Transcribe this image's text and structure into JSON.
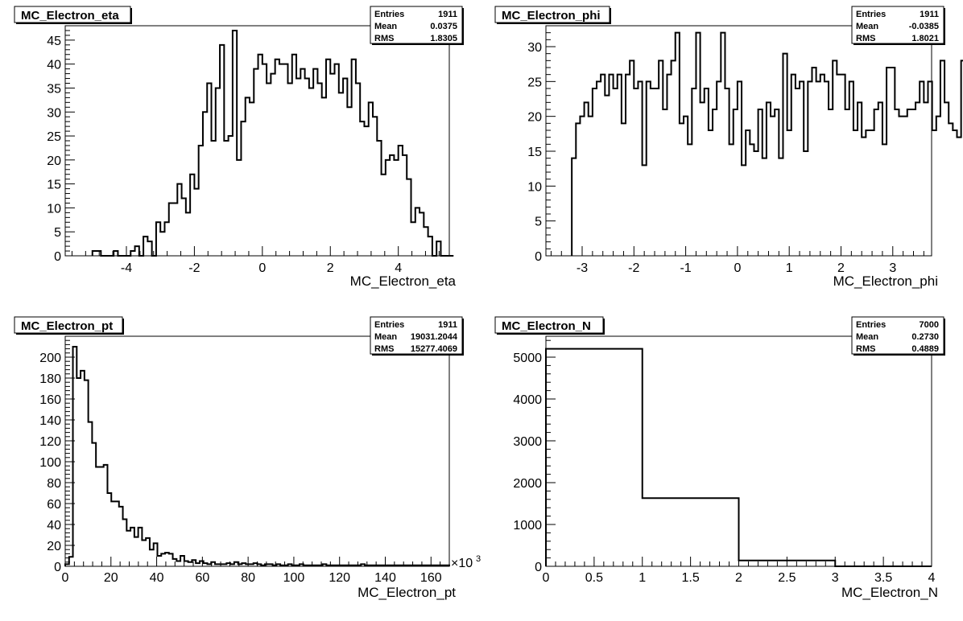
{
  "chart_data": [
    {
      "type": "bar",
      "title": "MC_Electron_eta",
      "xlabel": "MC_Electron_eta",
      "ylabel": "",
      "xlim": [
        -5.8,
        5.5
      ],
      "ylim": [
        0,
        48
      ],
      "xticks": [
        -4,
        -2,
        0,
        2,
        4
      ],
      "xtick_labels": [
        "-4",
        "-2",
        "0",
        "2",
        "4"
      ],
      "yticks": [
        0,
        5,
        10,
        15,
        20,
        25,
        30,
        35,
        40,
        45
      ],
      "ytick_labels": [
        "0",
        "5",
        "10",
        "15",
        "20",
        "25",
        "30",
        "35",
        "40",
        "45"
      ],
      "stats": {
        "entries_label": "Entries",
        "entries": "1911",
        "mean_label": "Mean",
        "mean": "0.0375",
        "rms_label": "RMS",
        "rms": "1.8305"
      },
      "bin_low": -5.0,
      "bin_width": 0.125,
      "values": [
        1,
        1,
        0,
        0,
        0,
        1,
        0,
        0,
        0,
        1,
        2,
        0,
        4,
        3,
        0,
        7,
        5,
        7,
        11,
        11,
        15,
        12,
        9,
        17,
        14,
        23,
        30,
        36,
        24,
        35,
        44,
        24,
        25,
        47,
        20,
        28,
        33,
        32,
        39,
        42,
        40,
        36,
        38,
        41,
        40,
        40,
        36,
        42,
        37,
        39,
        37,
        35,
        39,
        36,
        33,
        41,
        38,
        40,
        34,
        37,
        31,
        41,
        36,
        28,
        27,
        32,
        29,
        24,
        17,
        20,
        21,
        20,
        23,
        21,
        16,
        7,
        10,
        9,
        6,
        4,
        0,
        3,
        0,
        0,
        0
      ],
      "x_multiplier_label": ""
    },
    {
      "type": "bar",
      "title": "MC_Electron_phi",
      "xlabel": "MC_Electron_phi",
      "ylabel": "",
      "xlim": [
        -3.7,
        3.75
      ],
      "ylim": [
        0,
        33
      ],
      "xticks": [
        -3,
        -2,
        -1,
        0,
        1,
        2,
        3
      ],
      "xtick_labels": [
        "-3",
        "-2",
        "-1",
        "0",
        "1",
        "2",
        "3"
      ],
      "yticks": [
        0,
        5,
        10,
        15,
        20,
        25,
        30
      ],
      "ytick_labels": [
        "0",
        "5",
        "10",
        "15",
        "20",
        "25",
        "30"
      ],
      "stats": {
        "entries_label": "Entries",
        "entries": "1911",
        "mean_label": "Mean",
        "mean": "-0.0385",
        "rms_label": "RMS",
        "rms": "1.8021"
      },
      "bin_low": -3.2,
      "bin_width": 0.08,
      "values": [
        14,
        19,
        20,
        22,
        20,
        24,
        25,
        26,
        23,
        26,
        24,
        26,
        19,
        26,
        28,
        24,
        25,
        13,
        25,
        24,
        24,
        28,
        21,
        26,
        28,
        32,
        19,
        20,
        16,
        24,
        32,
        22,
        24,
        18,
        21,
        25,
        32,
        24,
        16,
        21,
        25,
        13,
        18,
        16,
        15,
        21,
        14,
        22,
        20,
        21,
        14,
        29,
        18,
        26,
        24,
        25,
        15,
        25,
        27,
        25,
        26,
        25,
        21,
        28,
        26,
        26,
        21,
        25,
        18,
        22,
        17,
        18,
        18,
        21,
        22,
        16,
        27,
        27,
        21,
        20,
        20,
        21,
        21,
        22,
        25,
        22,
        25,
        18,
        20,
        28,
        22,
        19,
        18,
        17,
        28,
        23,
        28,
        24,
        19,
        17,
        25,
        26,
        25,
        27,
        25,
        24,
        24,
        27,
        23,
        24,
        24,
        25,
        24,
        22,
        16,
        10,
        0,
        0
      ]
    },
    {
      "type": "bar",
      "title": "MC_Electron_pt",
      "xlabel": "MC_Electron_pt",
      "ylabel": "",
      "xlim": [
        0,
        168
      ],
      "ylim": [
        0,
        220
      ],
      "xticks": [
        0,
        20,
        40,
        60,
        80,
        100,
        120,
        140,
        160
      ],
      "xtick_labels": [
        "0",
        "20",
        "40",
        "60",
        "80",
        "100",
        "120",
        "140",
        "160"
      ],
      "yticks": [
        0,
        20,
        40,
        60,
        80,
        100,
        120,
        140,
        160,
        180,
        200
      ],
      "ytick_labels": [
        "0",
        "20",
        "40",
        "60",
        "80",
        "100",
        "120",
        "140",
        "160",
        "180",
        "200"
      ],
      "x_multiplier_label": "×10",
      "x_multiplier_exp": "3",
      "stats": {
        "entries_label": "Entries",
        "entries": "1911",
        "mean_label": "Mean",
        "mean": "19031.2044",
        "rms_label": "RMS",
        "rms": "15277.4069"
      },
      "bin_low": 0,
      "bin_width": 1.68,
      "values": [
        2,
        9,
        210,
        180,
        187,
        178,
        138,
        118,
        95,
        95,
        97,
        70,
        62,
        62,
        57,
        45,
        34,
        37,
        28,
        37,
        25,
        27,
        16,
        22,
        10,
        12,
        13,
        12,
        7,
        5,
        10,
        5,
        4,
        6,
        3,
        5,
        3,
        2,
        4,
        2,
        2,
        2,
        3,
        2,
        4,
        2,
        3,
        2,
        2,
        3,
        2,
        1,
        2,
        2,
        1,
        2,
        1,
        1,
        2,
        1,
        1,
        2,
        1,
        1,
        1,
        1,
        1,
        2,
        1,
        1,
        1,
        1,
        1,
        1,
        1,
        1,
        1,
        2,
        1,
        1,
        1,
        1,
        1,
        1,
        1,
        1,
        1,
        1,
        1,
        1,
        1,
        1,
        1,
        1,
        1,
        1,
        1,
        1,
        1,
        1
      ]
    },
    {
      "type": "bar",
      "title": "MC_Electron_N",
      "xlabel": "MC_Electron_N",
      "ylabel": "",
      "xlim": [
        0,
        4
      ],
      "ylim": [
        0,
        5500
      ],
      "xticks": [
        0,
        0.5,
        1,
        1.5,
        2,
        2.5,
        3,
        3.5,
        4
      ],
      "xtick_labels": [
        "0",
        "0.5",
        "1",
        "1.5",
        "2",
        "2.5",
        "3",
        "3.5",
        "4"
      ],
      "yticks": [
        0,
        1000,
        2000,
        3000,
        4000,
        5000
      ],
      "ytick_labels": [
        "0",
        "1000",
        "2000",
        "3000",
        "4000",
        "5000"
      ],
      "stats": {
        "entries_label": "Entries",
        "entries": "7000",
        "mean_label": "Mean",
        "mean": "0.2730",
        "rms_label": "RMS",
        "rms": "0.4889"
      },
      "bin_low": 0,
      "bin_width": 1,
      "values": [
        5200,
        1630,
        140,
        0
      ]
    }
  ]
}
